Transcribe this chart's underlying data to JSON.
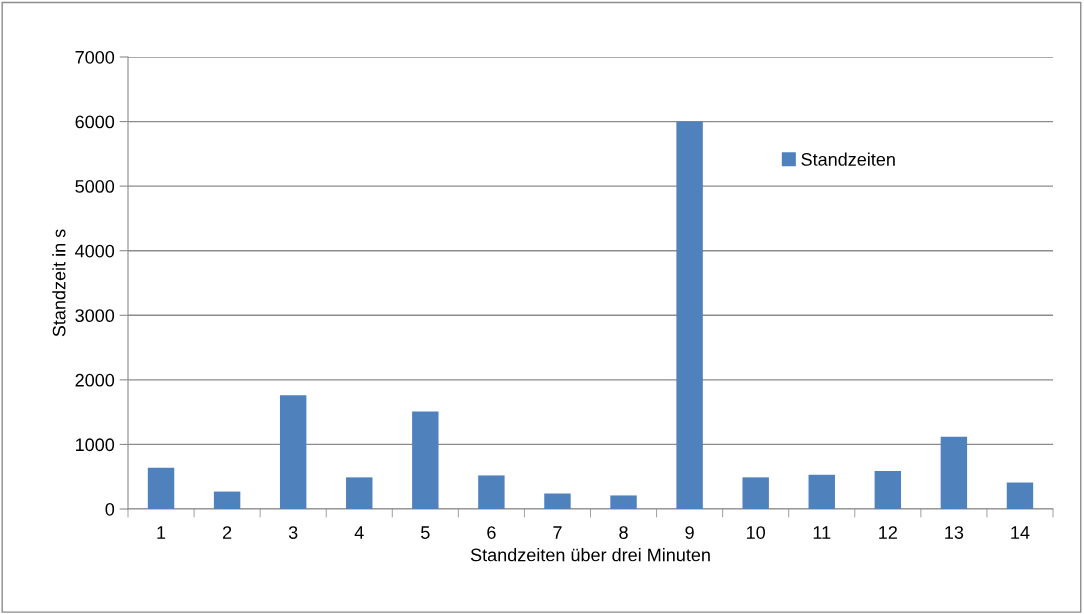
{
  "chart_data": {
    "type": "bar",
    "xlabel": "Standzeiten über drei Minuten",
    "ylabel": "Standzeit in s",
    "categories": [
      "1",
      "2",
      "3",
      "4",
      "5",
      "6",
      "7",
      "8",
      "9",
      "10",
      "11",
      "12",
      "13",
      "14"
    ],
    "series": [
      {
        "name": "Standzeiten",
        "color": "#4f81bd",
        "values": [
          640,
          270,
          1760,
          490,
          1510,
          520,
          240,
          210,
          6000,
          490,
          530,
          590,
          1120,
          410
        ]
      }
    ],
    "ylim": [
      0,
      7000
    ],
    "yticks": [
      0,
      1000,
      2000,
      3000,
      4000,
      5000,
      6000,
      7000
    ],
    "grid": "y",
    "legend": "right"
  }
}
